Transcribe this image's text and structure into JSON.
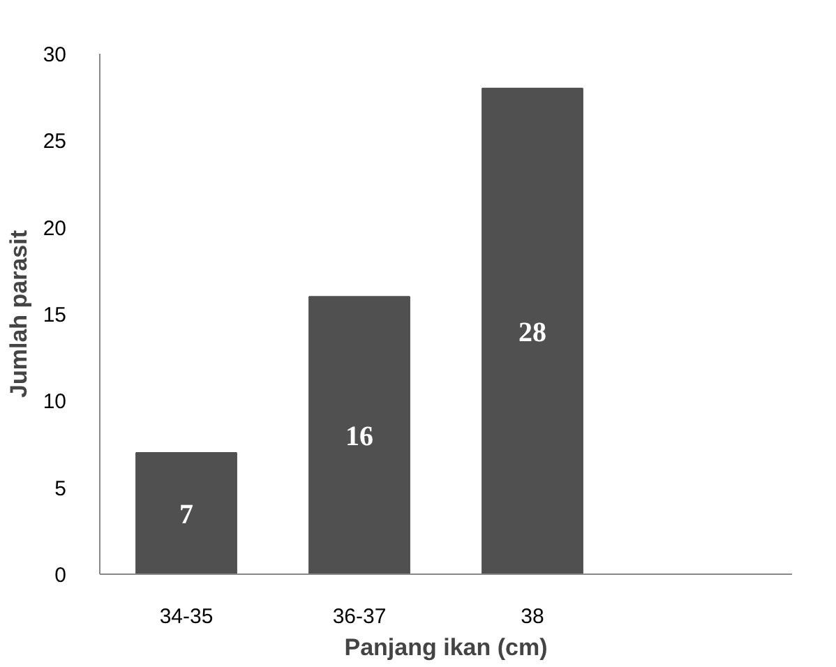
{
  "chart_data": {
    "type": "bar",
    "xlabel": "Panjang ikan (cm)",
    "ylabel": "Jumlah parasit",
    "categories": [
      "34-35",
      "36-37",
      "38",
      null
    ],
    "values": [
      7,
      16,
      28,
      null
    ],
    "color": "#505050",
    "ylim": [
      0,
      30
    ],
    "yticks": [
      0,
      5,
      10,
      15,
      20,
      25,
      30
    ],
    "grid": false,
    "data_labels": true
  }
}
